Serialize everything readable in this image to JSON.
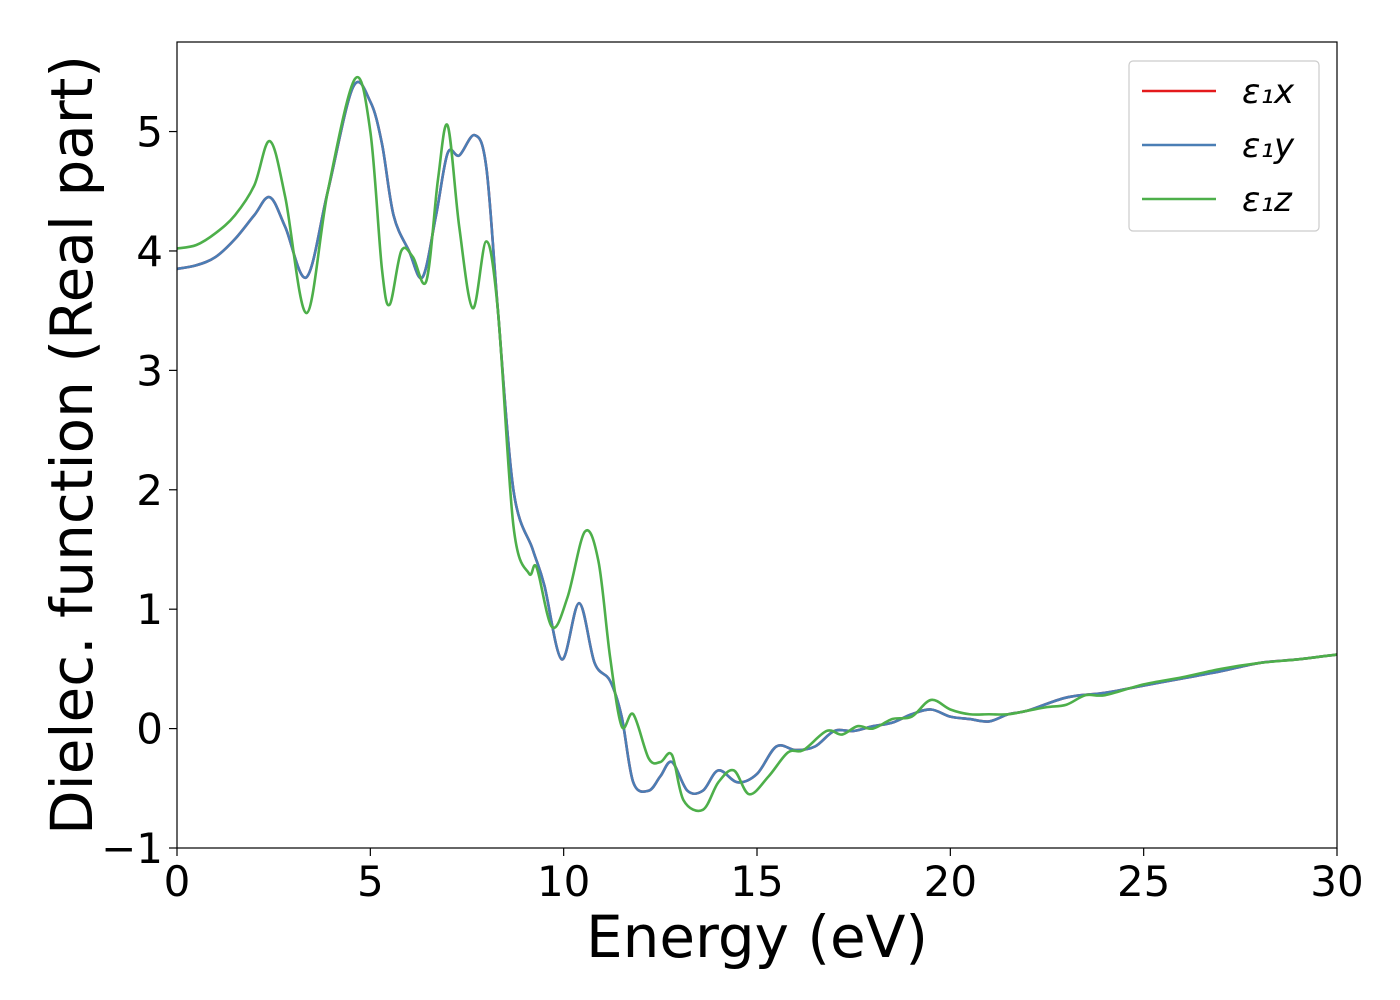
{
  "chart_data": {
    "type": "line",
    "title": "",
    "xlabel": "Energy (eV)",
    "ylabel": "Dielec. function (Real part)",
    "xlim": [
      0,
      30
    ],
    "ylim": [
      -1,
      5.75
    ],
    "xticks": [
      0,
      5,
      10,
      15,
      20,
      25,
      30
    ],
    "yticks": [
      -1,
      0,
      1,
      2,
      3,
      4,
      5
    ],
    "xtick_labels": [
      "0",
      "5",
      "10",
      "15",
      "20",
      "25",
      "30"
    ],
    "ytick_labels": [
      "−1",
      "0",
      "1",
      "2",
      "3",
      "4",
      "5"
    ],
    "grid": false,
    "legend": {
      "position": "top-right"
    },
    "series": [
      {
        "name": "ε₁x",
        "color": "#e41a1c",
        "x": [
          0,
          0.5,
          1,
          1.5,
          2,
          2.4,
          2.8,
          3.35,
          3.9,
          4.55,
          5.0,
          5.3,
          5.6,
          6.0,
          6.35,
          6.7,
          7.0,
          7.3,
          7.7,
          8.0,
          8.3,
          8.7,
          9.2,
          9.5,
          9.95,
          10.4,
          10.8,
          11.2,
          11.5,
          11.8,
          12.2,
          12.5,
          12.8,
          13.2,
          13.6,
          14.0,
          14.5,
          15.0,
          15.5,
          16.0,
          16.5,
          17.0,
          17.5,
          18.0,
          18.5,
          19.0,
          19.5,
          20.0,
          20.5,
          21.0,
          21.5,
          22.0,
          23.0,
          24.0,
          25.0,
          26.0,
          27.0,
          28.0,
          29.0,
          30.0
        ],
        "values": [
          3.85,
          3.88,
          3.95,
          4.1,
          4.3,
          4.45,
          4.2,
          3.78,
          4.5,
          5.37,
          5.25,
          4.9,
          4.3,
          4.0,
          3.78,
          4.3,
          4.82,
          4.8,
          4.97,
          4.7,
          3.5,
          2.0,
          1.5,
          1.2,
          0.58,
          1.05,
          0.55,
          0.4,
          0.1,
          -0.45,
          -0.52,
          -0.4,
          -0.28,
          -0.52,
          -0.52,
          -0.35,
          -0.45,
          -0.38,
          -0.15,
          -0.18,
          -0.15,
          -0.02,
          -0.02,
          0.02,
          0.05,
          0.12,
          0.16,
          0.1,
          0.08,
          0.06,
          0.12,
          0.15,
          0.26,
          0.3,
          0.36,
          0.42,
          0.48,
          0.55,
          0.58,
          0.62
        ]
      },
      {
        "name": "ε₁y",
        "color": "#4a7eb5",
        "x": [
          0,
          0.5,
          1,
          1.5,
          2,
          2.4,
          2.8,
          3.35,
          3.9,
          4.55,
          5.0,
          5.3,
          5.6,
          6.0,
          6.35,
          6.7,
          7.0,
          7.3,
          7.7,
          8.0,
          8.3,
          8.7,
          9.2,
          9.5,
          9.95,
          10.4,
          10.8,
          11.2,
          11.5,
          11.8,
          12.2,
          12.5,
          12.8,
          13.2,
          13.6,
          14.0,
          14.5,
          15.0,
          15.5,
          16.0,
          16.5,
          17.0,
          17.5,
          18.0,
          18.5,
          19.0,
          19.5,
          20.0,
          20.5,
          21.0,
          21.5,
          22.0,
          23.0,
          24.0,
          25.0,
          26.0,
          27.0,
          28.0,
          29.0,
          30.0
        ],
        "values": [
          3.85,
          3.88,
          3.95,
          4.1,
          4.3,
          4.45,
          4.2,
          3.78,
          4.5,
          5.37,
          5.25,
          4.9,
          4.3,
          4.0,
          3.78,
          4.3,
          4.82,
          4.8,
          4.97,
          4.7,
          3.5,
          2.0,
          1.5,
          1.2,
          0.58,
          1.05,
          0.55,
          0.4,
          0.1,
          -0.45,
          -0.52,
          -0.4,
          -0.28,
          -0.52,
          -0.52,
          -0.35,
          -0.45,
          -0.38,
          -0.15,
          -0.18,
          -0.15,
          -0.02,
          -0.02,
          0.02,
          0.05,
          0.12,
          0.16,
          0.1,
          0.08,
          0.06,
          0.12,
          0.15,
          0.26,
          0.3,
          0.36,
          0.42,
          0.48,
          0.55,
          0.58,
          0.62
        ]
      },
      {
        "name": "ε₁z",
        "color": "#4daf4a",
        "x": [
          0,
          0.5,
          1,
          1.5,
          2,
          2.4,
          2.8,
          3.35,
          3.9,
          4.6,
          5.0,
          5.3,
          5.5,
          5.8,
          6.1,
          6.45,
          6.75,
          7.0,
          7.3,
          7.65,
          8.0,
          8.3,
          8.7,
          9.1,
          9.3,
          9.7,
          10.1,
          10.55,
          10.9,
          11.2,
          11.5,
          11.8,
          12.2,
          12.5,
          12.8,
          13.1,
          13.6,
          14.0,
          14.4,
          14.8,
          15.3,
          15.8,
          16.2,
          16.8,
          17.2,
          17.6,
          18.0,
          18.5,
          19.0,
          19.5,
          20.0,
          20.5,
          21.0,
          21.5,
          22.0,
          22.5,
          23.0,
          23.5,
          24.0,
          25.0,
          26.0,
          27.0,
          28.0,
          29.0,
          30.0
        ],
        "values": [
          4.02,
          4.05,
          4.15,
          4.3,
          4.55,
          4.92,
          4.45,
          3.48,
          4.5,
          5.44,
          5.0,
          3.85,
          3.55,
          4.0,
          3.95,
          3.75,
          4.6,
          5.05,
          4.2,
          3.52,
          4.08,
          3.5,
          1.7,
          1.3,
          1.35,
          0.85,
          1.1,
          1.65,
          1.4,
          0.6,
          0.02,
          0.12,
          -0.25,
          -0.28,
          -0.22,
          -0.6,
          -0.68,
          -0.45,
          -0.35,
          -0.55,
          -0.4,
          -0.2,
          -0.18,
          -0.02,
          -0.05,
          0.02,
          0.0,
          0.08,
          0.1,
          0.24,
          0.16,
          0.12,
          0.12,
          0.12,
          0.15,
          0.18,
          0.2,
          0.28,
          0.28,
          0.37,
          0.43,
          0.5,
          0.55,
          0.58,
          0.62
        ]
      }
    ]
  }
}
